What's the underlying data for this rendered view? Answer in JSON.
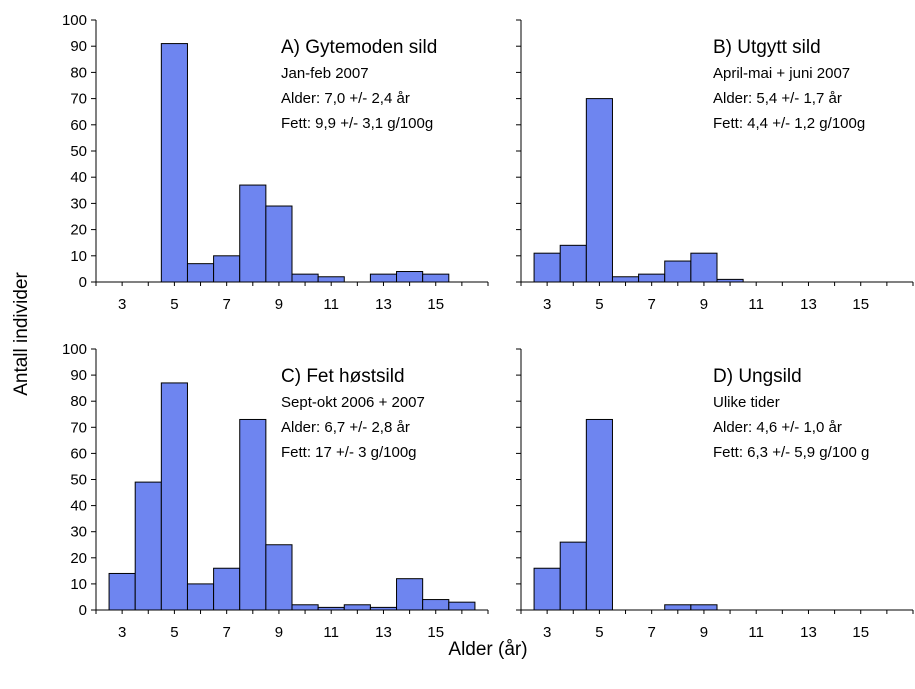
{
  "figure": {
    "ylabel": "Antall individer",
    "xlabel": "Alder (år)",
    "bar_color": "#6e85f0"
  },
  "chart_data": [
    {
      "type": "bar",
      "id": "A",
      "title": "A) Gytemoden sild",
      "annotations": [
        "Jan-feb 2007",
        "Alder: 7,0 +/- 2,4 år",
        "Fett: 9,9 +/- 3,1 g/100g"
      ],
      "x": [
        5,
        6,
        7,
        8,
        9,
        10,
        11,
        13,
        14,
        15
      ],
      "values": [
        91,
        7,
        10,
        37,
        29,
        3,
        2,
        3,
        4,
        3
      ],
      "xticks": [
        3,
        5,
        7,
        9,
        11,
        13,
        15
      ],
      "yticks": [
        0,
        10,
        20,
        30,
        40,
        50,
        60,
        70,
        80,
        90,
        100
      ],
      "xlim": [
        2,
        17
      ],
      "ylim": [
        0,
        100
      ]
    },
    {
      "type": "bar",
      "id": "B",
      "title": "B) Utgytt sild",
      "annotations": [
        "April-mai + juni 2007",
        "Alder: 5,4 +/- 1,7 år",
        "Fett: 4,4 +/- 1,2 g/100g"
      ],
      "x": [
        3,
        4,
        5,
        6,
        7,
        8,
        9,
        10
      ],
      "values": [
        11,
        14,
        70,
        2,
        3,
        8,
        11,
        1
      ],
      "xticks": [
        3,
        5,
        7,
        9,
        11,
        13,
        15
      ],
      "yticks": [
        0,
        10,
        20,
        30,
        40,
        50,
        60,
        70,
        80,
        90,
        100
      ],
      "xlim": [
        2,
        17
      ],
      "ylim": [
        0,
        100
      ]
    },
    {
      "type": "bar",
      "id": "C",
      "title": "C) Fet høstsild",
      "annotations": [
        "Sept-okt 2006 + 2007",
        "Alder: 6,7 +/- 2,8 år",
        "Fett: 17 +/- 3 g/100g"
      ],
      "x": [
        3,
        4,
        5,
        6,
        7,
        8,
        9,
        10,
        11,
        12,
        13,
        14,
        15,
        16
      ],
      "values": [
        14,
        49,
        87,
        10,
        16,
        73,
        25,
        2,
        1,
        2,
        1,
        12,
        4,
        3
      ],
      "xticks": [
        3,
        5,
        7,
        9,
        11,
        13,
        15
      ],
      "yticks": [
        0,
        10,
        20,
        30,
        40,
        50,
        60,
        70,
        80,
        90,
        100
      ],
      "xlim": [
        2,
        17
      ],
      "ylim": [
        0,
        100
      ]
    },
    {
      "type": "bar",
      "id": "D",
      "title": "D) Ungsild",
      "annotations": [
        "Ulike tider",
        "Alder: 4,6 +/- 1,0 år",
        "Fett: 6,3 +/- 5,9 g/100 g"
      ],
      "x": [
        3,
        4,
        5,
        8,
        9
      ],
      "values": [
        16,
        26,
        73,
        2,
        2
      ],
      "xticks": [
        3,
        5,
        7,
        9,
        11,
        13,
        15
      ],
      "yticks": [
        0,
        10,
        20,
        30,
        40,
        50,
        60,
        70,
        80,
        90,
        100
      ],
      "xlim": [
        2,
        17
      ],
      "ylim": [
        0,
        100
      ]
    }
  ]
}
